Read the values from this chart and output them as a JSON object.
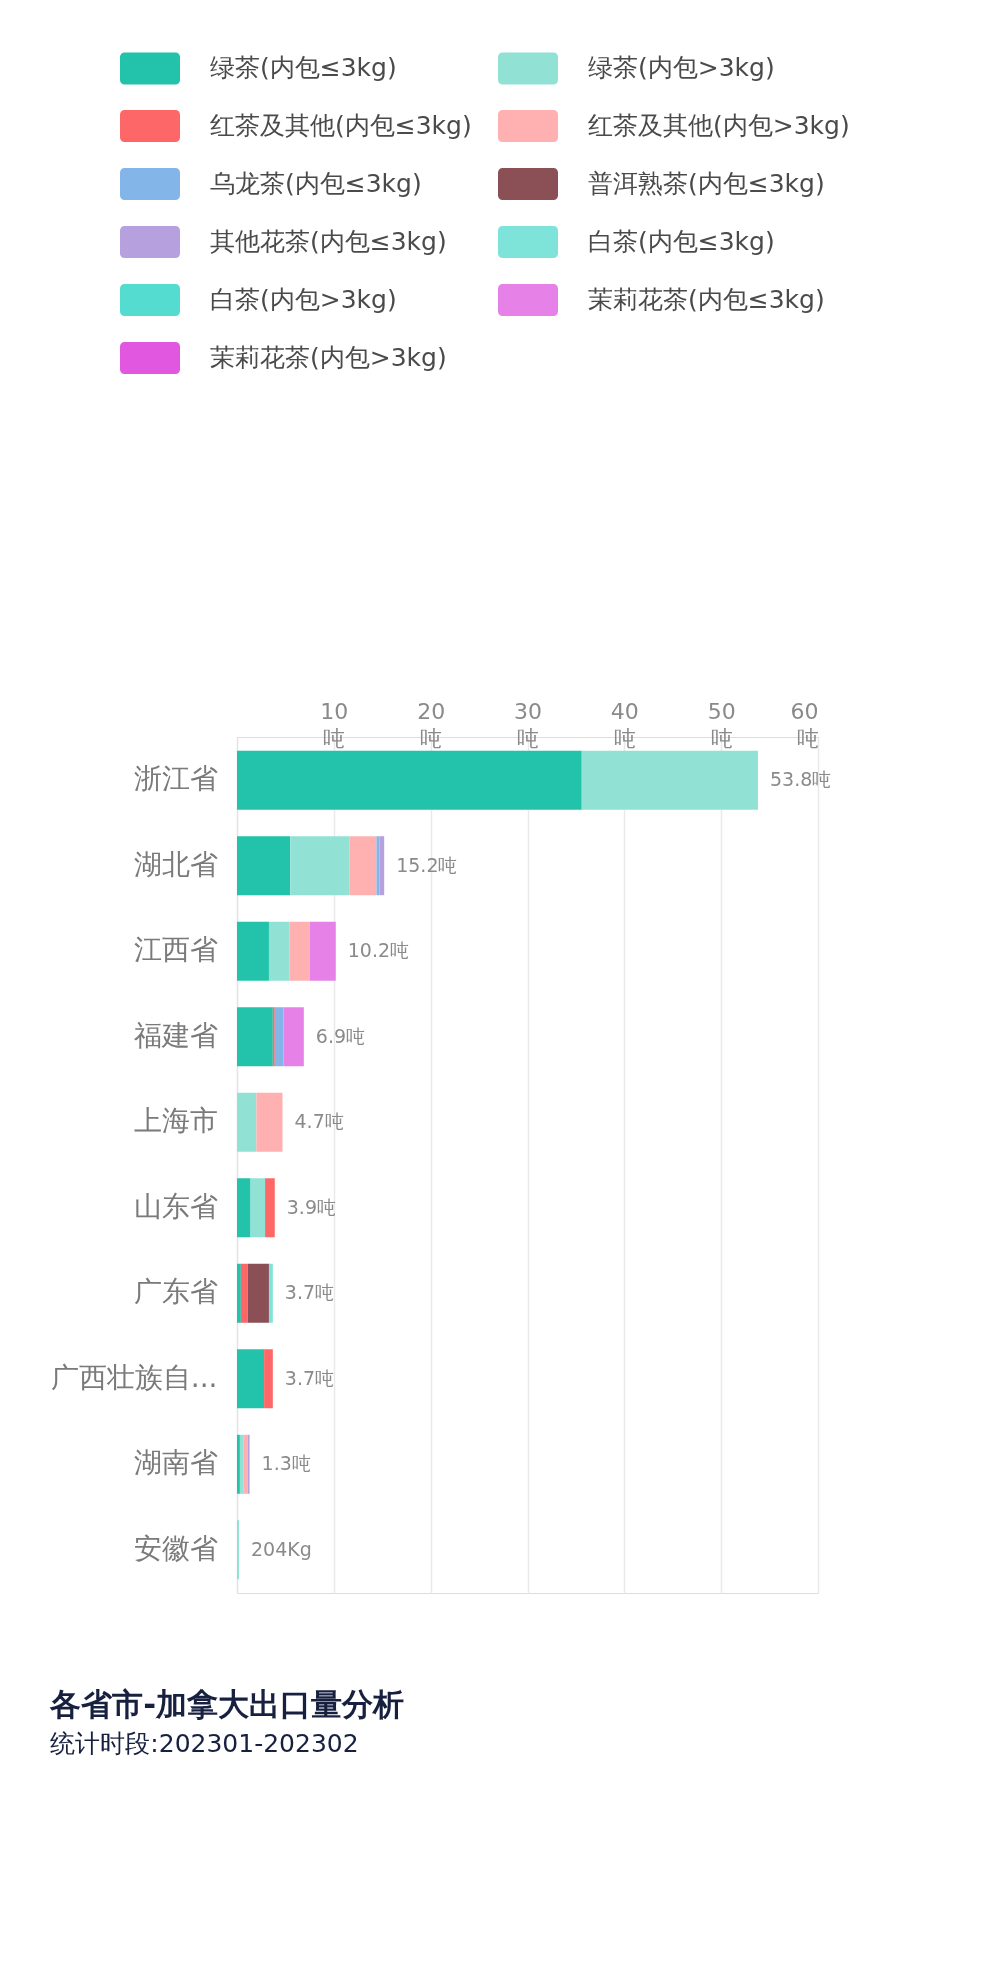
{
  "chart_data": {
    "type": "bar",
    "orientation": "horizontal",
    "stacked": true,
    "title": "各省市-加拿大出口量分析",
    "subtitle": "统计时段:202301-202302",
    "categories": [
      "浙江省",
      "湖北省",
      "江西省",
      "福建省",
      "上海市",
      "山东省",
      "广东省",
      "广西壮族自...",
      "湖南省",
      "安徽省"
    ],
    "series": [
      {
        "name": "绿茶(内包≤3kg)",
        "color": "#22c3aa",
        "values": [
          35.6,
          5.5,
          3.3,
          3.7,
          null,
          1.4,
          0.4,
          2.8,
          0.3,
          null
        ]
      },
      {
        "name": "绿茶(内包>3kg)",
        "color": "#91e2d5",
        "values": [
          18.2,
          6.1,
          2.1,
          null,
          2.0,
          1.5,
          null,
          null,
          0.4,
          0.204
        ]
      },
      {
        "name": "红茶及其他(内包≤3kg)",
        "color": "#fe6767",
        "values": [
          null,
          null,
          null,
          0.2,
          null,
          1.0,
          0.7,
          0.9,
          null,
          null
        ]
      },
      {
        "name": "红茶及其他(内包>3kg)",
        "color": "#ffb0b0",
        "values": [
          null,
          2.8,
          2.1,
          null,
          2.7,
          null,
          null,
          null,
          0.4,
          null
        ]
      },
      {
        "name": "乌龙茶(内包≤3kg)",
        "color": "#83b5e8",
        "values": [
          null,
          0.3,
          null,
          0.9,
          null,
          null,
          null,
          null,
          null,
          null
        ]
      },
      {
        "name": "普洱熟茶(内包≤3kg)",
        "color": "#8b4f56",
        "values": [
          null,
          null,
          null,
          null,
          null,
          null,
          2.2,
          null,
          null,
          null
        ]
      },
      {
        "name": "其他花茶(内包≤3kg)",
        "color": "#b7a0de",
        "values": [
          null,
          0.5,
          null,
          null,
          null,
          null,
          null,
          null,
          0.2,
          null
        ]
      },
      {
        "name": "白茶(内包≤3kg)",
        "color": "#7ee4da",
        "values": [
          null,
          null,
          null,
          null,
          null,
          null,
          0.4,
          null,
          null,
          null
        ]
      },
      {
        "name": "白茶(内包>3kg)",
        "color": "#55dcd0",
        "values": [
          null,
          null,
          null,
          null,
          null,
          null,
          null,
          null,
          null,
          null
        ]
      },
      {
        "name": "茉莉花茶(内包≤3kg)",
        "color": "#e681e8",
        "values": [
          null,
          null,
          2.7,
          2.1,
          null,
          null,
          null,
          null,
          null,
          null
        ]
      },
      {
        "name": "茉莉花茶(内包>3kg)",
        "color": "#e157df",
        "values": [
          null,
          null,
          null,
          null,
          null,
          null,
          null,
          null,
          null,
          null
        ]
      }
    ],
    "xlim": [
      0,
      60
    ],
    "xticks": [
      {
        "value": 10,
        "label": "10\n吨"
      },
      {
        "value": 20,
        "label": "20\n吨"
      },
      {
        "value": 30,
        "label": "30\n吨"
      },
      {
        "value": 40,
        "label": "40\n吨"
      },
      {
        "value": 50,
        "label": "50\n吨"
      },
      {
        "value": 60,
        "label": "60\n吨"
      }
    ],
    "grid": "x",
    "legend": "top",
    "totals": [
      "53.8吨",
      "15.2吨",
      "10.2吨",
      "6.9吨",
      "4.7吨",
      "3.9吨",
      "3.7吨",
      "3.7吨",
      "1.3吨",
      "204Kg"
    ]
  }
}
